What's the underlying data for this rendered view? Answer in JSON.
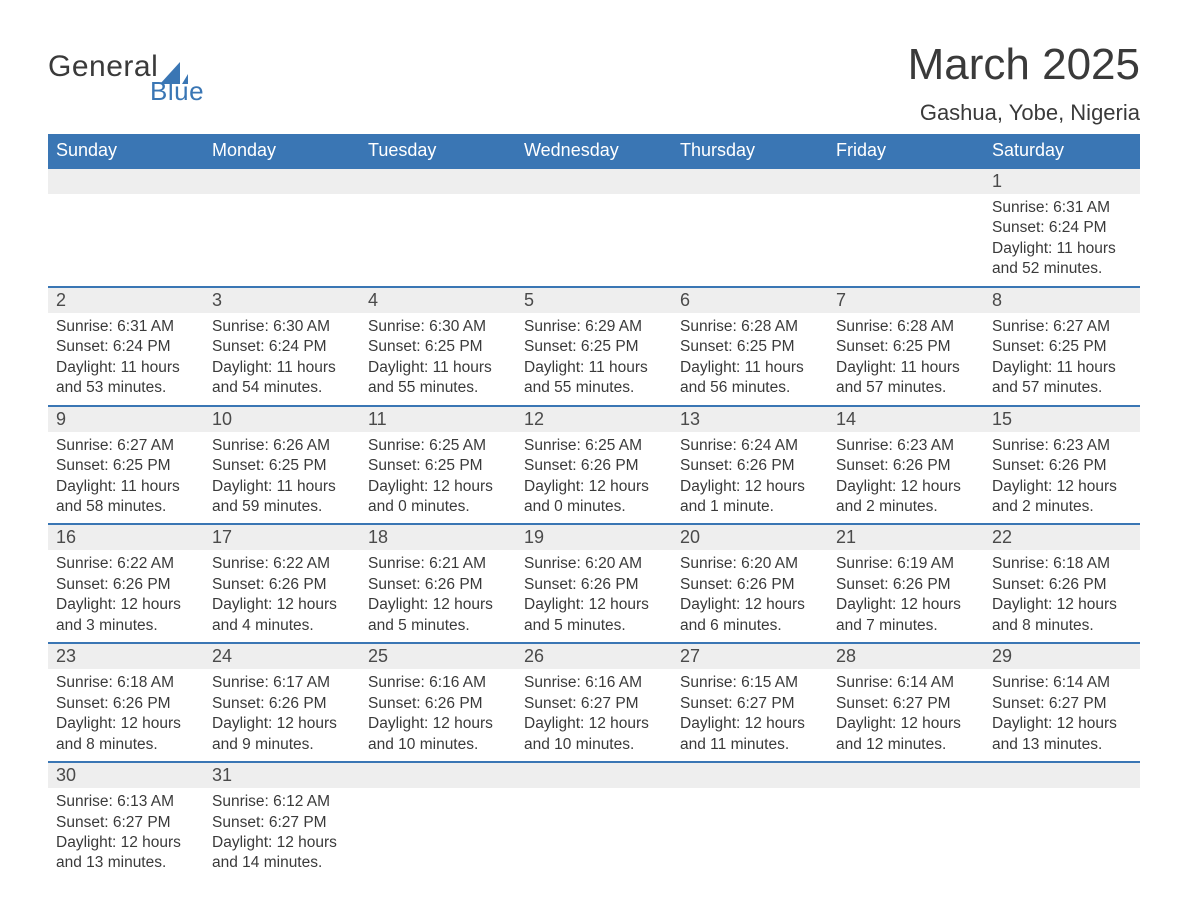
{
  "logo": {
    "general": "General",
    "blue": "Blue",
    "sail_color": "#3a76b4"
  },
  "title": "March 2025",
  "location": "Gashua, Yobe, Nigeria",
  "colors": {
    "header_bg": "#3a76b4",
    "header_text": "#ffffff",
    "daynum_bg": "#eeeeee",
    "border": "#3a76b4",
    "text": "#3a3a3a"
  },
  "day_headers": [
    "Sunday",
    "Monday",
    "Tuesday",
    "Wednesday",
    "Thursday",
    "Friday",
    "Saturday"
  ],
  "weeks": [
    [
      null,
      null,
      null,
      null,
      null,
      null,
      {
        "n": "1",
        "sr": "Sunrise: 6:31 AM",
        "ss": "Sunset: 6:24 PM",
        "dl": "Daylight: 11 hours and 52 minutes."
      }
    ],
    [
      {
        "n": "2",
        "sr": "Sunrise: 6:31 AM",
        "ss": "Sunset: 6:24 PM",
        "dl": "Daylight: 11 hours and 53 minutes."
      },
      {
        "n": "3",
        "sr": "Sunrise: 6:30 AM",
        "ss": "Sunset: 6:24 PM",
        "dl": "Daylight: 11 hours and 54 minutes."
      },
      {
        "n": "4",
        "sr": "Sunrise: 6:30 AM",
        "ss": "Sunset: 6:25 PM",
        "dl": "Daylight: 11 hours and 55 minutes."
      },
      {
        "n": "5",
        "sr": "Sunrise: 6:29 AM",
        "ss": "Sunset: 6:25 PM",
        "dl": "Daylight: 11 hours and 55 minutes."
      },
      {
        "n": "6",
        "sr": "Sunrise: 6:28 AM",
        "ss": "Sunset: 6:25 PM",
        "dl": "Daylight: 11 hours and 56 minutes."
      },
      {
        "n": "7",
        "sr": "Sunrise: 6:28 AM",
        "ss": "Sunset: 6:25 PM",
        "dl": "Daylight: 11 hours and 57 minutes."
      },
      {
        "n": "8",
        "sr": "Sunrise: 6:27 AM",
        "ss": "Sunset: 6:25 PM",
        "dl": "Daylight: 11 hours and 57 minutes."
      }
    ],
    [
      {
        "n": "9",
        "sr": "Sunrise: 6:27 AM",
        "ss": "Sunset: 6:25 PM",
        "dl": "Daylight: 11 hours and 58 minutes."
      },
      {
        "n": "10",
        "sr": "Sunrise: 6:26 AM",
        "ss": "Sunset: 6:25 PM",
        "dl": "Daylight: 11 hours and 59 minutes."
      },
      {
        "n": "11",
        "sr": "Sunrise: 6:25 AM",
        "ss": "Sunset: 6:25 PM",
        "dl": "Daylight: 12 hours and 0 minutes."
      },
      {
        "n": "12",
        "sr": "Sunrise: 6:25 AM",
        "ss": "Sunset: 6:26 PM",
        "dl": "Daylight: 12 hours and 0 minutes."
      },
      {
        "n": "13",
        "sr": "Sunrise: 6:24 AM",
        "ss": "Sunset: 6:26 PM",
        "dl": "Daylight: 12 hours and 1 minute."
      },
      {
        "n": "14",
        "sr": "Sunrise: 6:23 AM",
        "ss": "Sunset: 6:26 PM",
        "dl": "Daylight: 12 hours and 2 minutes."
      },
      {
        "n": "15",
        "sr": "Sunrise: 6:23 AM",
        "ss": "Sunset: 6:26 PM",
        "dl": "Daylight: 12 hours and 2 minutes."
      }
    ],
    [
      {
        "n": "16",
        "sr": "Sunrise: 6:22 AM",
        "ss": "Sunset: 6:26 PM",
        "dl": "Daylight: 12 hours and 3 minutes."
      },
      {
        "n": "17",
        "sr": "Sunrise: 6:22 AM",
        "ss": "Sunset: 6:26 PM",
        "dl": "Daylight: 12 hours and 4 minutes."
      },
      {
        "n": "18",
        "sr": "Sunrise: 6:21 AM",
        "ss": "Sunset: 6:26 PM",
        "dl": "Daylight: 12 hours and 5 minutes."
      },
      {
        "n": "19",
        "sr": "Sunrise: 6:20 AM",
        "ss": "Sunset: 6:26 PM",
        "dl": "Daylight: 12 hours and 5 minutes."
      },
      {
        "n": "20",
        "sr": "Sunrise: 6:20 AM",
        "ss": "Sunset: 6:26 PM",
        "dl": "Daylight: 12 hours and 6 minutes."
      },
      {
        "n": "21",
        "sr": "Sunrise: 6:19 AM",
        "ss": "Sunset: 6:26 PM",
        "dl": "Daylight: 12 hours and 7 minutes."
      },
      {
        "n": "22",
        "sr": "Sunrise: 6:18 AM",
        "ss": "Sunset: 6:26 PM",
        "dl": "Daylight: 12 hours and 8 minutes."
      }
    ],
    [
      {
        "n": "23",
        "sr": "Sunrise: 6:18 AM",
        "ss": "Sunset: 6:26 PM",
        "dl": "Daylight: 12 hours and 8 minutes."
      },
      {
        "n": "24",
        "sr": "Sunrise: 6:17 AM",
        "ss": "Sunset: 6:26 PM",
        "dl": "Daylight: 12 hours and 9 minutes."
      },
      {
        "n": "25",
        "sr": "Sunrise: 6:16 AM",
        "ss": "Sunset: 6:26 PM",
        "dl": "Daylight: 12 hours and 10 minutes."
      },
      {
        "n": "26",
        "sr": "Sunrise: 6:16 AM",
        "ss": "Sunset: 6:27 PM",
        "dl": "Daylight: 12 hours and 10 minutes."
      },
      {
        "n": "27",
        "sr": "Sunrise: 6:15 AM",
        "ss": "Sunset: 6:27 PM",
        "dl": "Daylight: 12 hours and 11 minutes."
      },
      {
        "n": "28",
        "sr": "Sunrise: 6:14 AM",
        "ss": "Sunset: 6:27 PM",
        "dl": "Daylight: 12 hours and 12 minutes."
      },
      {
        "n": "29",
        "sr": "Sunrise: 6:14 AM",
        "ss": "Sunset: 6:27 PM",
        "dl": "Daylight: 12 hours and 13 minutes."
      }
    ],
    [
      {
        "n": "30",
        "sr": "Sunrise: 6:13 AM",
        "ss": "Sunset: 6:27 PM",
        "dl": "Daylight: 12 hours and 13 minutes."
      },
      {
        "n": "31",
        "sr": "Sunrise: 6:12 AM",
        "ss": "Sunset: 6:27 PM",
        "dl": "Daylight: 12 hours and 14 minutes."
      },
      null,
      null,
      null,
      null,
      null
    ]
  ]
}
